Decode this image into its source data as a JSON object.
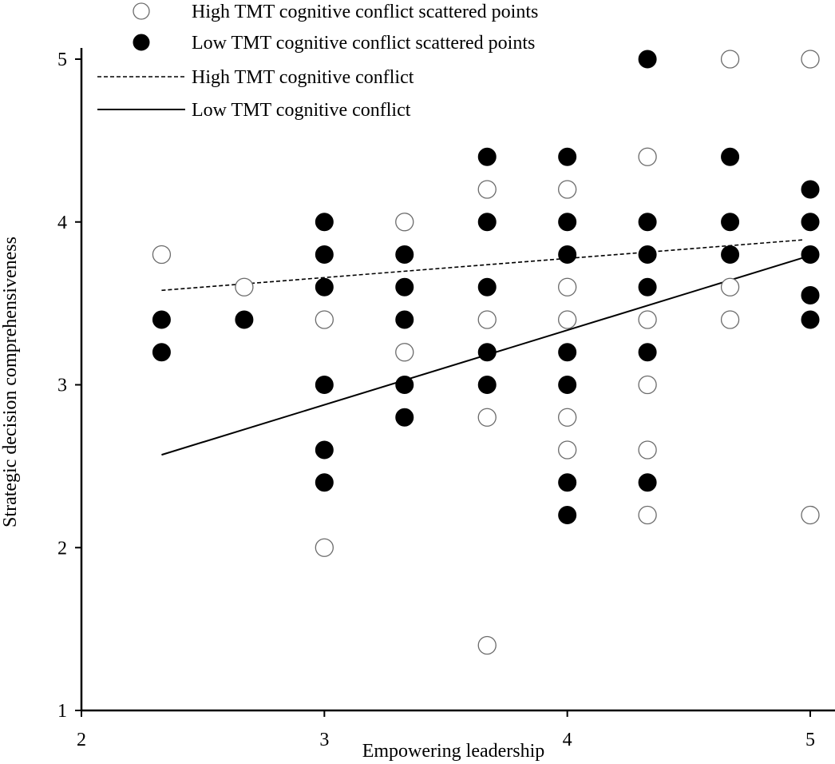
{
  "chart_data": {
    "type": "scatter",
    "title": "",
    "xlabel": "Empowering leadership",
    "ylabel": "Strategic decision comprehensiveness",
    "xlim": [
      2,
      5
    ],
    "ylim": [
      1,
      5
    ],
    "xticks": [
      2,
      3,
      4,
      5
    ],
    "yticks": [
      1,
      2,
      3,
      4,
      5
    ],
    "grid": false,
    "legend_position": "top-left",
    "series": [
      {
        "name": "High TMT cognitive conflict scattered points",
        "kind": "scatter",
        "marker": "open-circle",
        "points": [
          [
            2.33,
            3.8
          ],
          [
            2.67,
            3.6
          ],
          [
            3.0,
            3.4
          ],
          [
            3.0,
            2.0
          ],
          [
            3.33,
            4.0
          ],
          [
            3.33,
            3.2
          ],
          [
            3.67,
            4.2
          ],
          [
            3.67,
            3.4
          ],
          [
            3.67,
            2.8
          ],
          [
            3.67,
            1.4
          ],
          [
            4.0,
            4.2
          ],
          [
            4.0,
            3.6
          ],
          [
            4.0,
            3.4
          ],
          [
            4.0,
            2.8
          ],
          [
            4.0,
            2.6
          ],
          [
            4.33,
            4.4
          ],
          [
            4.33,
            3.4
          ],
          [
            4.33,
            3.0
          ],
          [
            4.33,
            2.6
          ],
          [
            4.33,
            2.2
          ],
          [
            4.67,
            5.0
          ],
          [
            4.67,
            3.6
          ],
          [
            4.67,
            3.4
          ],
          [
            5.0,
            5.0
          ],
          [
            5.0,
            2.2
          ]
        ]
      },
      {
        "name": "Low TMT cognitive conflict scattered points",
        "kind": "scatter",
        "marker": "filled-circle",
        "points": [
          [
            2.33,
            3.4
          ],
          [
            2.33,
            3.2
          ],
          [
            2.67,
            3.4
          ],
          [
            3.0,
            4.0
          ],
          [
            3.0,
            3.8
          ],
          [
            3.0,
            3.6
          ],
          [
            3.0,
            3.0
          ],
          [
            3.0,
            2.6
          ],
          [
            3.0,
            2.4
          ],
          [
            3.33,
            3.8
          ],
          [
            3.33,
            3.6
          ],
          [
            3.33,
            3.4
          ],
          [
            3.33,
            3.0
          ],
          [
            3.33,
            2.8
          ],
          [
            3.67,
            4.4
          ],
          [
            3.67,
            4.0
          ],
          [
            3.67,
            3.6
          ],
          [
            3.67,
            3.2
          ],
          [
            3.67,
            3.0
          ],
          [
            4.0,
            4.4
          ],
          [
            4.0,
            4.0
          ],
          [
            4.0,
            3.8
          ],
          [
            4.0,
            3.2
          ],
          [
            4.0,
            3.0
          ],
          [
            4.0,
            2.4
          ],
          [
            4.0,
            2.2
          ],
          [
            4.33,
            5.0
          ],
          [
            4.33,
            4.0
          ],
          [
            4.33,
            3.8
          ],
          [
            4.33,
            3.6
          ],
          [
            4.33,
            3.2
          ],
          [
            4.33,
            2.4
          ],
          [
            4.67,
            4.4
          ],
          [
            4.67,
            4.0
          ],
          [
            4.67,
            3.8
          ],
          [
            5.0,
            4.2
          ],
          [
            5.0,
            4.0
          ],
          [
            5.0,
            3.8
          ],
          [
            5.0,
            3.55
          ],
          [
            5.0,
            3.4
          ]
        ]
      },
      {
        "name": "High TMT cognitive conflict",
        "kind": "line",
        "style": "dashed",
        "x": [
          2.33,
          4.97
        ],
        "y": [
          3.58,
          3.89
        ]
      },
      {
        "name": "Low TMT cognitive conflict",
        "kind": "line",
        "style": "solid",
        "x": [
          2.33,
          4.97
        ],
        "y": [
          2.57,
          3.78
        ]
      }
    ]
  }
}
